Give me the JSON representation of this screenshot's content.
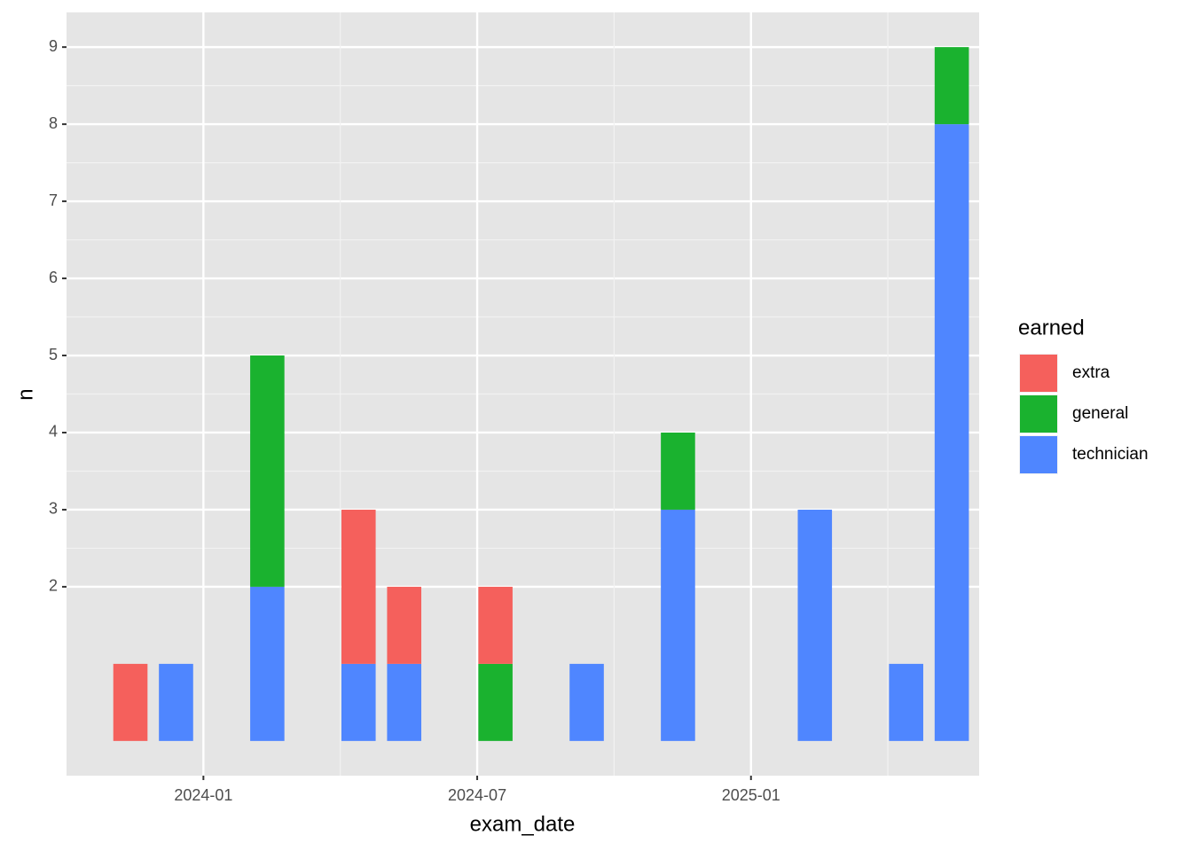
{
  "chart_data": {
    "type": "bar",
    "stacked": true,
    "x_label": "exam_date",
    "y_label": "n",
    "legend_title": "earned",
    "legend_position": "right",
    "grid": true,
    "categories": [
      "2023-11",
      "2023-12",
      "2024-02",
      "2024-04",
      "2024-05",
      "2024-07",
      "2024-09",
      "2024-11",
      "2025-02",
      "2025-04",
      "2025-05"
    ],
    "series": [
      {
        "name": "extra",
        "color": "#F5605C",
        "values": [
          1,
          null,
          null,
          2,
          1,
          1,
          null,
          null,
          null,
          null,
          null
        ]
      },
      {
        "name": "general",
        "color": "#1AB22F",
        "values": [
          null,
          null,
          3,
          null,
          null,
          1,
          null,
          1,
          null,
          null,
          1
        ]
      },
      {
        "name": "technician",
        "color": "#4F86FF",
        "values": [
          null,
          1,
          2,
          1,
          1,
          null,
          1,
          3,
          3,
          1,
          8
        ]
      }
    ],
    "xlim": [
      "2023-10",
      "2025-06"
    ],
    "xticks": [
      "2024-01",
      "2024-07",
      "2025-01"
    ],
    "ylim": [
      -0.45,
      9.45
    ],
    "yticks": [
      2,
      3,
      4,
      5,
      6,
      7,
      8,
      9
    ]
  }
}
